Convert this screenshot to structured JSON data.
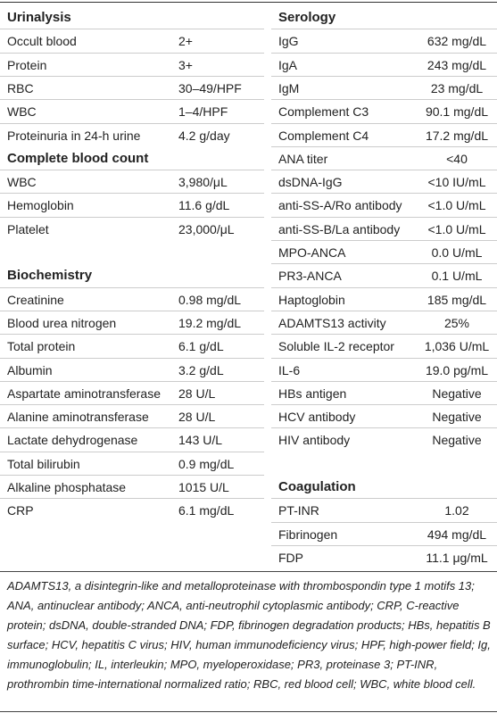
{
  "left": [
    {
      "title": "Urinalysis",
      "rows": [
        [
          "Occult blood",
          "2+"
        ],
        [
          "Protein",
          "3+"
        ],
        [
          "RBC",
          "30–49/HPF"
        ],
        [
          "WBC",
          "1–4/HPF"
        ],
        [
          "Proteinuria in 24-h urine",
          "4.2 g/day"
        ]
      ]
    },
    {
      "title": "Complete blood count",
      "rows": [
        [
          "WBC",
          "3,980/μL"
        ],
        [
          "Hemoglobin",
          "11.6 g/dL"
        ],
        [
          "Platelet",
          "23,000/μL"
        ]
      ]
    },
    {
      "title": "Biochemistry",
      "rows": [
        [
          "Creatinine",
          "0.98 mg/dL"
        ],
        [
          "Blood urea nitrogen",
          "19.2 mg/dL"
        ],
        [
          "Total protein",
          "6.1 g/dL"
        ],
        [
          "Albumin",
          "3.2 g/dL"
        ],
        [
          "Aspartate aminotransferase",
          "28 U/L"
        ],
        [
          "Alanine aminotransferase",
          "28 U/L"
        ],
        [
          "Lactate dehydrogenase",
          "143 U/L"
        ],
        [
          "Total bilirubin",
          "0.9 mg/dL"
        ],
        [
          "Alkaline phosphatase",
          "1015 U/L"
        ],
        [
          "CRP",
          "6.1 mg/dL"
        ]
      ]
    }
  ],
  "right": [
    {
      "title": "Serology",
      "rows": [
        [
          "IgG",
          "632 mg/dL"
        ],
        [
          "IgA",
          "243 mg/dL"
        ],
        [
          "IgM",
          "23 mg/dL"
        ],
        [
          "Complement C3",
          "90.1 mg/dL"
        ],
        [
          "Complement C4",
          "17.2 mg/dL"
        ],
        [
          "ANA titer",
          "<40"
        ],
        [
          "dsDNA-IgG",
          "<10 IU/mL"
        ],
        [
          "anti-SS-A/Ro antibody",
          "<1.0 U/mL"
        ],
        [
          "anti-SS-B/La antibody",
          "<1.0 U/mL"
        ],
        [
          "MPO-ANCA",
          "0.0 U/mL"
        ],
        [
          "PR3-ANCA",
          "0.1 U/mL"
        ],
        [
          "Haptoglobin",
          "185 mg/dL"
        ],
        [
          "ADAMTS13 activity",
          "25%"
        ],
        [
          "Soluble IL-2 receptor",
          "1,036 U/mL"
        ],
        [
          "IL-6",
          "19.0 pg/mL"
        ],
        [
          "HBs antigen",
          "Negative"
        ],
        [
          "HCV antibody",
          "Negative"
        ],
        [
          "HIV antibody",
          "Negative"
        ]
      ]
    },
    {
      "title": "Coagulation",
      "rows": [
        [
          "PT-INR",
          "1.02"
        ],
        [
          "Fibrinogen",
          "494 mg/dL"
        ],
        [
          "FDP",
          "11.1 μg/mL"
        ]
      ]
    }
  ],
  "footnote": "ADAMTS13, a disintegrin-like and metalloproteinase with thrombospondin type 1 motifs 13; ANA, antinuclear antibody; ANCA, anti-neutrophil cytoplasmic antibody; CRP, C-reactive protein; dsDNA, double-stranded DNA; FDP, fibrinogen degradation products; HBs, hepatitis B surface; HCV, hepatitis C virus; HIV, human immunodeficiency virus; HPF, high-power field; Ig, immunoglobulin; IL, interleukin; MPO, myeloperoxidase; PR3, proteinase 3; PT-INR, prothrombin time-international normalized ratio; RBC, red blood cell; WBC, white blood cell."
}
